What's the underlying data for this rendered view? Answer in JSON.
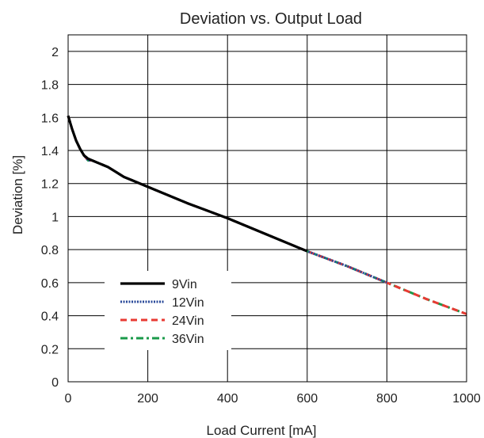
{
  "chart_data": {
    "type": "line",
    "title": "Deviation vs. Output Load",
    "xlabel": "Load Current [mA]",
    "ylabel": "Deviation [%]",
    "xlim": [
      0,
      1000
    ],
    "ylim": [
      0,
      2.1
    ],
    "x_ticks": [
      0,
      200,
      400,
      600,
      800,
      1000
    ],
    "y_ticks": [
      0,
      0.2,
      0.4,
      0.6,
      0.8,
      1,
      1.2,
      1.4,
      1.6,
      1.8,
      2
    ],
    "x_tick_labels": [
      "0",
      "200",
      "400",
      "600",
      "800",
      "1000"
    ],
    "y_tick_labels": [
      "0",
      "0.2",
      "0.4",
      "0.6",
      "0.8",
      "1",
      "1.2",
      "1.4",
      "1.6",
      "1.8",
      "2"
    ],
    "grid": true,
    "legend_position": "bottom-left",
    "series": [
      {
        "name": "9Vin",
        "color": "#000000",
        "style": "solid",
        "x": [
          0,
          10,
          20,
          30,
          40,
          50,
          60,
          80,
          100,
          120,
          140,
          160,
          200,
          300,
          400,
          500,
          600
        ],
        "y": [
          1.61,
          1.53,
          1.46,
          1.41,
          1.37,
          1.35,
          1.34,
          1.32,
          1.3,
          1.27,
          1.24,
          1.22,
          1.18,
          1.08,
          0.99,
          0.89,
          0.79
        ]
      },
      {
        "name": "12Vin",
        "color": "#2a4a9a",
        "style": "dotted",
        "x": [
          0,
          10,
          20,
          30,
          40,
          50,
          60,
          80,
          100,
          120,
          140,
          160,
          200,
          300,
          400,
          500,
          600,
          700,
          800
        ],
        "y": [
          1.61,
          1.53,
          1.46,
          1.41,
          1.37,
          1.34,
          1.34,
          1.32,
          1.3,
          1.27,
          1.24,
          1.22,
          1.18,
          1.08,
          0.99,
          0.89,
          0.79,
          0.7,
          0.6
        ]
      },
      {
        "name": "24Vin",
        "color": "#e83a33",
        "style": "dashed",
        "x": [
          0,
          10,
          20,
          30,
          40,
          50,
          60,
          80,
          100,
          120,
          140,
          160,
          200,
          300,
          400,
          500,
          600,
          700,
          800,
          900,
          1000
        ],
        "y": [
          1.61,
          1.53,
          1.46,
          1.41,
          1.37,
          1.34,
          1.34,
          1.32,
          1.3,
          1.27,
          1.24,
          1.22,
          1.18,
          1.08,
          0.99,
          0.89,
          0.79,
          0.7,
          0.6,
          0.5,
          0.41
        ]
      },
      {
        "name": "36Vin",
        "color": "#1a9a4a",
        "style": "dashdot",
        "x": [
          0,
          10,
          20,
          30,
          40,
          50,
          60,
          80,
          100,
          120,
          140,
          160,
          200,
          300,
          400,
          500,
          600,
          700,
          800,
          900,
          1000
        ],
        "y": [
          1.61,
          1.53,
          1.46,
          1.41,
          1.37,
          1.34,
          1.34,
          1.32,
          1.3,
          1.27,
          1.24,
          1.22,
          1.18,
          1.08,
          0.99,
          0.89,
          0.79,
          0.7,
          0.6,
          0.5,
          0.41
        ]
      }
    ]
  }
}
